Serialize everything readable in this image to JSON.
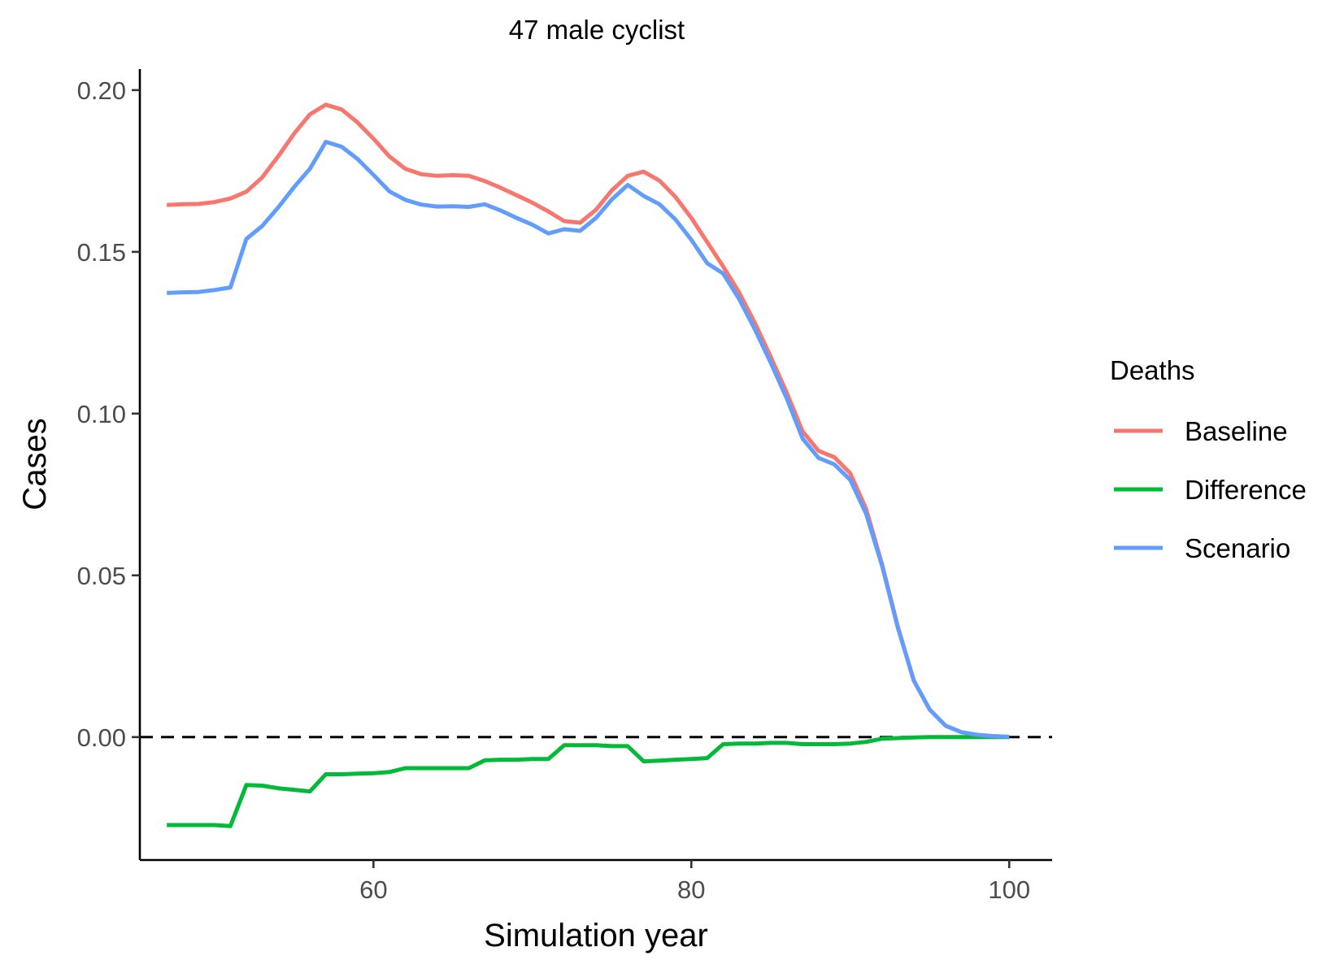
{
  "chart_data": {
    "type": "line",
    "title": "47 male cyclist",
    "xlabel": "Simulation year",
    "ylabel": "Cases",
    "xlim": [
      45.3,
      102.7
    ],
    "ylim": [
      -0.038,
      0.2065
    ],
    "xticks": [
      60,
      80,
      100
    ],
    "xtick_labels": [
      "60",
      "80",
      "100"
    ],
    "yticks": [
      0.0,
      0.05,
      0.1,
      0.15,
      0.2
    ],
    "ytick_labels": [
      "0.00",
      "0.05",
      "0.10",
      "0.15",
      "0.20"
    ],
    "reference_line": {
      "y": 0,
      "style": "dashed"
    },
    "grid": false,
    "legend": {
      "title": "Deaths",
      "position": "right"
    },
    "x": [
      47,
      48,
      49,
      50,
      51,
      52,
      53,
      54,
      55,
      56,
      57,
      58,
      59,
      60,
      61,
      62,
      63,
      64,
      65,
      66,
      67,
      68,
      69,
      70,
      71,
      72,
      73,
      74,
      75,
      76,
      77,
      78,
      79,
      80,
      81,
      82,
      83,
      84,
      85,
      86,
      87,
      88,
      89,
      90,
      91,
      92,
      93,
      94,
      95,
      96,
      97,
      98,
      99,
      100
    ],
    "series": [
      {
        "name": "Baseline",
        "color": "#F8766D",
        "values": [
          0.1645,
          0.1647,
          0.1648,
          0.1654,
          0.1665,
          0.1686,
          0.173,
          0.1795,
          0.1865,
          0.1925,
          0.1955,
          0.194,
          0.19,
          0.185,
          0.1795,
          0.1757,
          0.174,
          0.1735,
          0.1737,
          0.1735,
          0.1719,
          0.1698,
          0.1675,
          0.1652,
          0.1625,
          0.1595,
          0.159,
          0.163,
          0.169,
          0.1735,
          0.1748,
          0.172,
          0.167,
          0.1605,
          0.153,
          0.1455,
          0.1375,
          0.128,
          0.1175,
          0.1065,
          0.0945,
          0.0885,
          0.0865,
          0.0815,
          0.0705,
          0.0535,
          0.034,
          0.0175,
          0.0085,
          0.0035,
          0.0015,
          0.0007,
          0.0003,
          0.0001
        ]
      },
      {
        "name": "Difference",
        "color": "#00BA38",
        "values": [
          -0.0272,
          -0.0272,
          -0.0272,
          -0.0272,
          -0.0275,
          -0.0148,
          -0.015,
          -0.0158,
          -0.0163,
          -0.0168,
          -0.0115,
          -0.0115,
          -0.0113,
          -0.0112,
          -0.0108,
          -0.0096,
          -0.0096,
          -0.0096,
          -0.0096,
          -0.0096,
          -0.0072,
          -0.007,
          -0.007,
          -0.0068,
          -0.0068,
          -0.0025,
          -0.0025,
          -0.0025,
          -0.0028,
          -0.0028,
          -0.0075,
          -0.0073,
          -0.007,
          -0.0068,
          -0.0065,
          -0.0022,
          -0.002,
          -0.002,
          -0.0018,
          -0.0018,
          -0.0022,
          -0.0022,
          -0.0022,
          -0.002,
          -0.0015,
          -0.0005,
          -0.0003,
          -0.0001,
          0.0,
          0.0,
          0.0,
          0.0,
          0.0,
          0.0
        ]
      },
      {
        "name": "Scenario",
        "color": "#619CFF",
        "values": [
          0.1373,
          0.1375,
          0.1376,
          0.1382,
          0.139,
          0.154,
          0.158,
          0.1637,
          0.17,
          0.1757,
          0.184,
          0.1825,
          0.1787,
          0.1738,
          0.1687,
          0.1661,
          0.1646,
          0.164,
          0.1641,
          0.1639,
          0.1647,
          0.1628,
          0.1605,
          0.1584,
          0.1557,
          0.157,
          0.1565,
          0.1605,
          0.1662,
          0.1707,
          0.1673,
          0.1647,
          0.16,
          0.1537,
          0.1465,
          0.1433,
          0.1355,
          0.126,
          0.1157,
          0.1047,
          0.0923,
          0.0863,
          0.0843,
          0.0795,
          0.069,
          0.053,
          0.0337,
          0.0174,
          0.0085,
          0.0035,
          0.0015,
          0.0007,
          0.0003,
          0.0001
        ]
      }
    ]
  }
}
